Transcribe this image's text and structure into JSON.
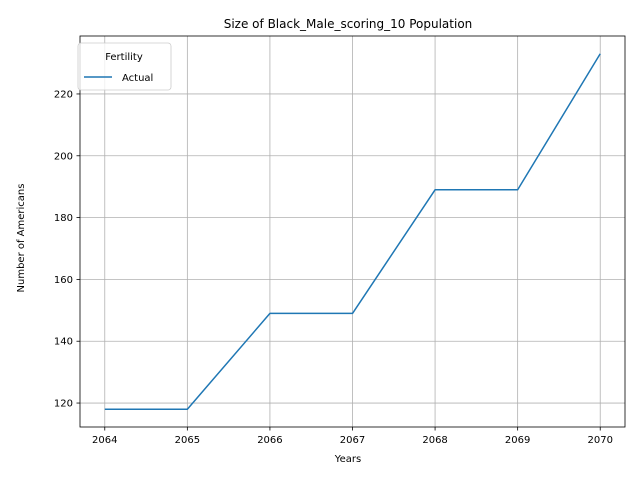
{
  "chart_data": {
    "type": "line",
    "title": "Size of Black_Male_scoring_10 Population",
    "xlabel": "Years",
    "ylabel": "Number of Americans",
    "x": [
      2064,
      2065,
      2066,
      2067,
      2068,
      2069,
      2070
    ],
    "series": [
      {
        "name": "Actual",
        "values": [
          118,
          118,
          149,
          149,
          189,
          189,
          233
        ],
        "color": "#1f77b4"
      }
    ],
    "xlim": [
      2063.7,
      2070.3
    ],
    "ylim": [
      112.25,
      238.75
    ],
    "xticks": [
      2064,
      2065,
      2066,
      2067,
      2068,
      2069,
      2070
    ],
    "yticks": [
      120,
      140,
      160,
      180,
      200,
      220
    ],
    "legend": {
      "title": "Fertility",
      "placement": "top-left"
    },
    "grid": true
  }
}
